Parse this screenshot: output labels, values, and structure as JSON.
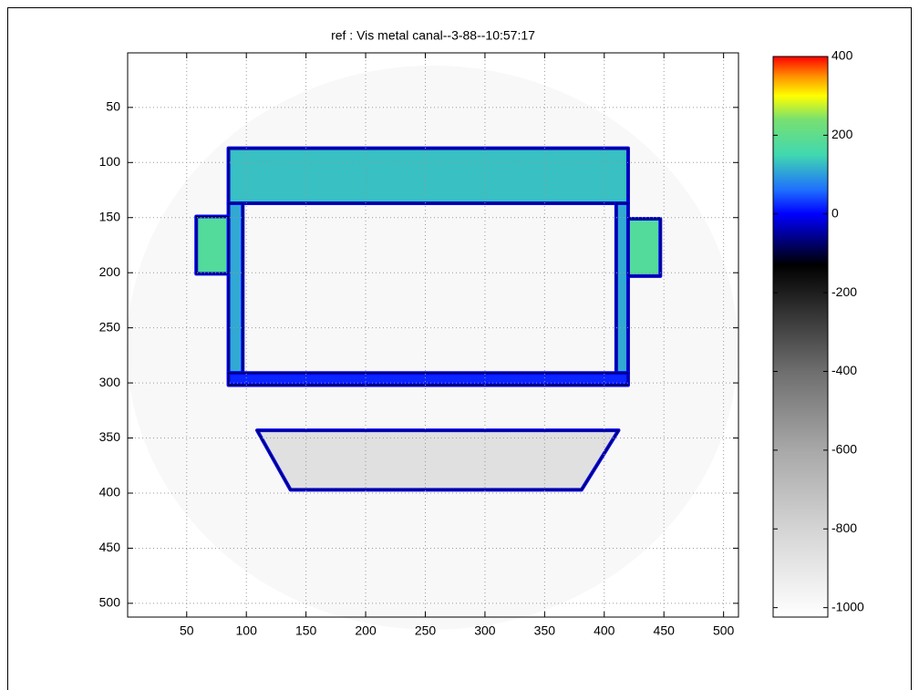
{
  "chart_data": {
    "type": "image",
    "title": "ref : Vis metal canal--3-88--10:57:17",
    "xlim": [
      0.5,
      512.5
    ],
    "ylim": [
      0.5,
      512.5
    ],
    "y_reversed": true,
    "xticks": [
      50,
      100,
      150,
      200,
      250,
      300,
      350,
      400,
      450,
      500
    ],
    "yticks": [
      50,
      100,
      150,
      200,
      250,
      300,
      350,
      400,
      450,
      500
    ],
    "grid": true,
    "clim": [
      -1024,
      400
    ],
    "cticks": [
      400,
      200,
      0,
      -200,
      -400,
      -600,
      -800,
      -1000
    ],
    "colormap": [
      {
        "value": -1024,
        "color": "#ffffff"
      },
      {
        "value": -800,
        "color": "#d4d4d4"
      },
      {
        "value": -600,
        "color": "#a8a8a8"
      },
      {
        "value": -400,
        "color": "#6e6e6e"
      },
      {
        "value": -250,
        "color": "#333333"
      },
      {
        "value": -130,
        "color": "#000000"
      },
      {
        "value": 0,
        "color": "#0000ff"
      },
      {
        "value": 60,
        "color": "#1e6eff"
      },
      {
        "value": 150,
        "color": "#40d8b0"
      },
      {
        "value": 240,
        "color": "#78e070"
      },
      {
        "value": 300,
        "color": "#ffff00"
      },
      {
        "value": 350,
        "color": "#ff9000"
      },
      {
        "value": 400,
        "color": "#ff0000"
      }
    ],
    "regions": [
      {
        "shape": "ellipse",
        "x": [
          256
        ],
        "y": [
          268
        ],
        "r": [
          256
        ],
        "value": -985
      },
      {
        "shape": "polygon",
        "x": [
          85,
          420,
          420,
          85
        ],
        "y": [
          87,
          87,
          137,
          137
        ],
        "value": 130,
        "edge": 0
      },
      {
        "shape": "polygon",
        "x": [
          85,
          97,
          97,
          85
        ],
        "y": [
          137,
          137,
          291,
          291
        ],
        "value": 110,
        "edge": 0
      },
      {
        "shape": "polygon",
        "x": [
          410,
          420,
          420,
          410
        ],
        "y": [
          137,
          137,
          291,
          291
        ],
        "value": 110,
        "edge": 0
      },
      {
        "shape": "polygon",
        "x": [
          58,
          85,
          85,
          58
        ],
        "y": [
          149,
          149,
          201,
          201
        ],
        "value": 180,
        "edge": 0
      },
      {
        "shape": "polygon",
        "x": [
          420,
          447,
          447,
          420
        ],
        "y": [
          151,
          151,
          203,
          203
        ],
        "value": 180,
        "edge": 0
      },
      {
        "shape": "polygon",
        "x": [
          85,
          420,
          420,
          85
        ],
        "y": [
          291,
          291,
          302,
          302
        ],
        "value": 20,
        "edge": 0
      },
      {
        "shape": "polygon",
        "x": [
          109,
          412,
          381,
          137
        ],
        "y": [
          343,
          343,
          397,
          397
        ],
        "value": -860,
        "edge": 0
      }
    ]
  }
}
